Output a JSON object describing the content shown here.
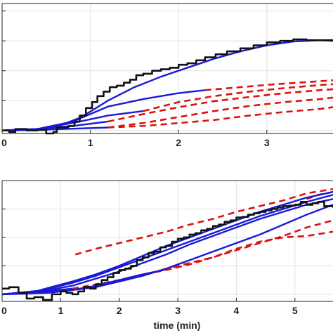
{
  "chart_data": [
    {
      "type": "line",
      "title": "",
      "xlabel": "",
      "ylabel": "",
      "xlim": [
        0,
        3.75
      ],
      "ylim": [
        -0.1,
        4.25
      ],
      "x_ticks": [
        0,
        1,
        2,
        3
      ],
      "x_tick_labels": [
        "0",
        "1",
        "2",
        "3"
      ],
      "y_ticks": [
        0,
        1,
        2,
        3,
        4
      ],
      "grid": true,
      "colors": {
        "measured": "#111111",
        "fit": "#1a1ad6",
        "prediction": "#dd1111"
      },
      "series": [
        {
          "role": "measured",
          "style": "step",
          "x": [
            0,
            0.08,
            0.15,
            0.28,
            0.4,
            0.5,
            0.58,
            0.62,
            0.75,
            0.82,
            0.88,
            0.95,
            1.02,
            1.08,
            1.15,
            1.22,
            1.3,
            1.38,
            1.45,
            1.52,
            1.6,
            1.7,
            1.8,
            1.9,
            2.0,
            2.1,
            2.2,
            2.3,
            2.42,
            2.55,
            2.7,
            2.85,
            3.0,
            3.15,
            3.3,
            3.45,
            3.6,
            3.75
          ],
          "y": [
            0.0,
            -0.05,
            0.05,
            0.0,
            0.02,
            -0.1,
            -0.05,
            0.1,
            0.15,
            0.3,
            0.5,
            0.75,
            0.95,
            1.15,
            1.3,
            1.45,
            1.5,
            1.6,
            1.7,
            1.85,
            1.9,
            2.0,
            2.05,
            2.1,
            2.2,
            2.25,
            2.35,
            2.45,
            2.55,
            2.65,
            2.75,
            2.85,
            2.95,
            3.0,
            3.05,
            3.02,
            3.02,
            3.0
          ]
        },
        {
          "role": "fit",
          "x": [
            0,
            0.3,
            0.6,
            0.9,
            1.2,
            1.5,
            1.8,
            2.1,
            2.4,
            2.7,
            3.0,
            3.3,
            3.6,
            3.75
          ],
          "y": [
            0.0,
            0.02,
            0.1,
            0.45,
            1.0,
            1.45,
            1.8,
            2.1,
            2.4,
            2.65,
            2.85,
            2.98,
            3.02,
            3.0
          ]
        },
        {
          "role": "fit",
          "x": [
            0,
            0.4,
            0.8,
            1.2,
            1.6,
            2.0,
            2.3
          ],
          "y": [
            0.0,
            0.05,
            0.3,
            0.8,
            1.05,
            1.25,
            1.35
          ]
        },
        {
          "role": "fit",
          "x": [
            0,
            0.4,
            0.8,
            1.2,
            1.6
          ],
          "y": [
            0.0,
            0.05,
            0.25,
            0.5,
            0.65
          ]
        },
        {
          "role": "fit",
          "x": [
            0,
            0.4,
            0.8,
            1.2
          ],
          "y": [
            0.0,
            0.05,
            0.15,
            0.3
          ]
        },
        {
          "role": "fit",
          "x": [
            0,
            0.4,
            0.8,
            1.2
          ],
          "y": [
            0.0,
            0.02,
            0.06,
            0.1
          ]
        },
        {
          "role": "prediction",
          "x": [
            2.3,
            2.7,
            3.1,
            3.5,
            3.75
          ],
          "y": [
            1.35,
            1.45,
            1.55,
            1.63,
            1.68
          ]
        },
        {
          "role": "prediction",
          "x": [
            1.6,
            2.0,
            2.4,
            2.8,
            3.2,
            3.6,
            3.75
          ],
          "y": [
            0.65,
            0.95,
            1.15,
            1.3,
            1.42,
            1.52,
            1.55
          ]
        },
        {
          "role": "prediction",
          "x": [
            1.2,
            1.6,
            2.0,
            2.4,
            2.8,
            3.2,
            3.6,
            3.75
          ],
          "y": [
            0.3,
            0.55,
            0.78,
            0.98,
            1.12,
            1.25,
            1.35,
            1.38
          ]
        },
        {
          "role": "prediction",
          "x": [
            1.2,
            1.6,
            2.0,
            2.4,
            2.8,
            3.2,
            3.6,
            3.75
          ],
          "y": [
            0.1,
            0.25,
            0.45,
            0.65,
            0.82,
            0.95,
            1.05,
            1.1
          ]
        },
        {
          "role": "prediction",
          "x": [
            1.2,
            1.6,
            2.0,
            2.4,
            2.8,
            3.2,
            3.6,
            3.75
          ],
          "y": [
            0.1,
            0.15,
            0.25,
            0.35,
            0.5,
            0.62,
            0.72,
            0.78
          ]
        }
      ]
    },
    {
      "type": "line",
      "title": "",
      "xlabel": "time (min)",
      "ylabel": "",
      "xlim": [
        0,
        5.65
      ],
      "ylim": [
        -0.25,
        4.0
      ],
      "x_ticks": [
        0,
        1,
        2,
        3,
        4,
        5
      ],
      "x_tick_labels": [
        "0",
        "1",
        "2",
        "3",
        "4",
        "5"
      ],
      "y_ticks": [
        0,
        1,
        2,
        3
      ],
      "grid": true,
      "colors": {
        "measured": "#111111",
        "fit": "#1a1ad6",
        "prediction": "#dd1111"
      },
      "series": [
        {
          "role": "measured",
          "style": "step",
          "x": [
            0,
            0.12,
            0.28,
            0.42,
            0.55,
            0.7,
            0.85,
            1.0,
            1.1,
            1.2,
            1.3,
            1.4,
            1.5,
            1.6,
            1.7,
            1.8,
            1.9,
            2.0,
            2.1,
            2.2,
            2.3,
            2.4,
            2.5,
            2.6,
            2.7,
            2.8,
            2.9,
            3.0,
            3.1,
            3.2,
            3.3,
            3.4,
            3.5,
            3.6,
            3.7,
            3.8,
            3.9,
            4.0,
            4.1,
            4.2,
            4.3,
            4.4,
            4.5,
            4.6,
            4.7,
            4.8,
            4.9,
            5.0,
            5.1,
            5.2,
            5.3,
            5.4,
            5.5,
            5.65
          ],
          "y": [
            0.2,
            0.25,
            0.05,
            -0.15,
            -0.1,
            -0.2,
            0.0,
            0.1,
            0.05,
            0.0,
            0.1,
            0.25,
            0.2,
            0.35,
            0.5,
            0.6,
            0.75,
            0.85,
            0.9,
            1.0,
            1.2,
            1.3,
            1.45,
            1.5,
            1.65,
            1.7,
            1.85,
            1.95,
            2.0,
            2.1,
            2.15,
            2.25,
            2.3,
            2.4,
            2.45,
            2.55,
            2.6,
            2.7,
            2.72,
            2.8,
            2.85,
            2.9,
            2.95,
            3.0,
            3.05,
            3.1,
            3.12,
            3.15,
            3.25,
            3.15,
            3.2,
            3.25,
            3.1,
            3.05
          ]
        },
        {
          "role": "fit",
          "x": [
            0,
            0.4,
            0.8,
            1.2
          ],
          "y": [
            0.0,
            0.04,
            0.12,
            0.2
          ]
        },
        {
          "role": "fit",
          "x": [
            0,
            0.4,
            0.8,
            1.2,
            1.6,
            2.0,
            2.4,
            2.75
          ],
          "y": [
            0.0,
            0.02,
            0.05,
            0.15,
            0.3,
            0.5,
            0.7,
            0.85
          ]
        },
        {
          "role": "fit",
          "x": [
            0,
            0.6,
            1.2,
            1.6,
            2.0,
            2.4,
            2.8,
            3.2,
            3.6,
            4.0,
            4.4,
            4.8,
            5.2,
            5.65
          ],
          "y": [
            0.0,
            0.05,
            0.15,
            0.25,
            0.45,
            0.65,
            0.9,
            1.2,
            1.5,
            1.8,
            2.1,
            2.45,
            2.8,
            3.15
          ]
        },
        {
          "role": "fit",
          "x": [
            0,
            0.6,
            1.2,
            1.6,
            2.0,
            2.4,
            2.8,
            3.2,
            3.6,
            4.0,
            4.4,
            4.8,
            5.2,
            5.65
          ],
          "y": [
            0.0,
            0.08,
            0.3,
            0.55,
            0.8,
            1.1,
            1.4,
            1.75,
            2.05,
            2.35,
            2.65,
            2.9,
            3.15,
            3.35
          ]
        },
        {
          "role": "fit",
          "x": [
            0,
            0.6,
            1.2,
            1.6,
            2.0,
            2.4,
            2.8,
            3.2,
            3.6,
            4.0,
            4.4,
            4.8,
            5.2,
            5.65
          ],
          "y": [
            0.0,
            0.1,
            0.4,
            0.65,
            0.95,
            1.25,
            1.55,
            1.85,
            2.15,
            2.45,
            2.75,
            3.0,
            3.25,
            3.5
          ]
        },
        {
          "role": "fit",
          "x": [
            0,
            0.6,
            1.2,
            1.6,
            2.0,
            2.4,
            2.8,
            3.2,
            3.6,
            4.0,
            4.4,
            4.8,
            5.2,
            5.65
          ],
          "y": [
            0.0,
            0.12,
            0.45,
            0.7,
            1.0,
            1.35,
            1.7,
            2.0,
            2.3,
            2.6,
            2.9,
            3.15,
            3.4,
            3.6
          ]
        },
        {
          "role": "prediction",
          "x": [
            1.2,
            1.6,
            2.0,
            2.4,
            2.8,
            3.2,
            3.6,
            4.0,
            4.4,
            4.8,
            5.2,
            5.65
          ],
          "y": [
            0.2,
            0.35,
            0.5,
            0.7,
            0.85,
            1.05,
            1.3,
            1.6,
            1.85,
            2.0,
            2.05,
            2.2
          ]
        },
        {
          "role": "prediction",
          "x": [
            2.75,
            3.2,
            3.6,
            4.0,
            4.4,
            4.8,
            5.2,
            5.65
          ],
          "y": [
            0.85,
            1.1,
            1.3,
            1.55,
            1.8,
            2.05,
            2.35,
            2.6
          ]
        },
        {
          "role": "prediction",
          "x": [
            1.25,
            1.6,
            2.0,
            2.4,
            2.8,
            3.2,
            3.6,
            4.0,
            4.4,
            4.8,
            5.2,
            5.65
          ],
          "y": [
            1.4,
            1.6,
            1.8,
            2.0,
            2.2,
            2.45,
            2.65,
            2.9,
            3.1,
            3.3,
            3.55,
            3.7
          ]
        },
        {
          "role": "prediction",
          "x": [
            5.2,
            5.4,
            5.65
          ],
          "y": [
            3.35,
            3.5,
            3.6
          ]
        }
      ]
    }
  ]
}
